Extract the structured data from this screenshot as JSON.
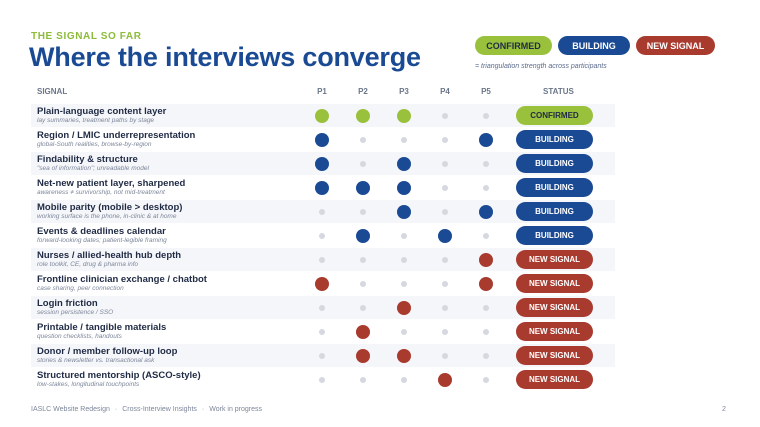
{
  "eyebrow": "THE SIGNAL SO FAR",
  "title": "Where the interviews converge",
  "legend": {
    "confirmed": "CONFIRMED",
    "building": "BUILDING",
    "new_signal": "NEW SIGNAL",
    "note": "= triangulation strength across participants"
  },
  "colors": {
    "confirmed": "#9ac13c",
    "building": "#1a4a94",
    "new_signal": "#a83a2e",
    "dot_empty": "#d5d8de"
  },
  "table": {
    "headers": {
      "signal": "SIGNAL",
      "p1": "P1",
      "p2": "P2",
      "p3": "P3",
      "p4": "P4",
      "p5": "P5",
      "status": "STATUS"
    },
    "rows": [
      {
        "title": "Plain-language content layer",
        "subtitle": "lay summaries, treatment paths by stage",
        "dots": [
          1,
          1,
          1,
          0,
          0
        ],
        "status": "CONFIRMED",
        "kind": "confirmed"
      },
      {
        "title": "Region / LMIC underrepresentation",
        "subtitle": "global-South realities, browse-by-region",
        "dots": [
          1,
          0,
          0,
          0,
          1
        ],
        "status": "BUILDING",
        "kind": "building"
      },
      {
        "title": "Findability & structure",
        "subtitle": "\"sea of information\"; unreadable model",
        "dots": [
          1,
          0,
          1,
          0,
          0
        ],
        "status": "BUILDING",
        "kind": "building"
      },
      {
        "title": "Net-new patient layer, sharpened",
        "subtitle": "awareness ≠ survivorship, not mid-treatment",
        "dots": [
          1,
          1,
          1,
          0,
          0
        ],
        "status": "BUILDING",
        "kind": "building"
      },
      {
        "title": "Mobile parity (mobile > desktop)",
        "subtitle": "working surface is the phone, in-clinic & at home",
        "dots": [
          0,
          0,
          1,
          0,
          1
        ],
        "status": "BUILDING",
        "kind": "building"
      },
      {
        "title": "Events & deadlines calendar",
        "subtitle": "forward-looking dates; patient-legible framing",
        "dots": [
          0,
          1,
          0,
          1,
          0
        ],
        "status": "BUILDING",
        "kind": "building"
      },
      {
        "title": "Nurses / allied-health hub depth",
        "subtitle": "role toolkit, CE, drug & pharma info",
        "dots": [
          0,
          0,
          0,
          0,
          1
        ],
        "status": "NEW SIGNAL",
        "kind": "new_signal"
      },
      {
        "title": "Frontline clinician exchange / chatbot",
        "subtitle": "case sharing, peer connection",
        "dots": [
          1,
          0,
          0,
          0,
          1
        ],
        "status": "NEW SIGNAL",
        "kind": "new_signal"
      },
      {
        "title": "Login friction",
        "subtitle": "session persistence / SSO",
        "dots": [
          0,
          0,
          1,
          0,
          0
        ],
        "status": "NEW SIGNAL",
        "kind": "new_signal"
      },
      {
        "title": "Printable / tangible materials",
        "subtitle": "question checklists, handouts",
        "dots": [
          0,
          1,
          0,
          0,
          0
        ],
        "status": "NEW SIGNAL",
        "kind": "new_signal"
      },
      {
        "title": "Donor / member follow-up loop",
        "subtitle": "stories & newsletter vs. transactional ask",
        "dots": [
          0,
          1,
          1,
          0,
          0
        ],
        "status": "NEW SIGNAL",
        "kind": "new_signal"
      },
      {
        "title": "Structured mentorship (ASCO-style)",
        "subtitle": "low-stakes, longitudinal touchpoints",
        "dots": [
          0,
          0,
          0,
          1,
          0
        ],
        "status": "NEW SIGNAL",
        "kind": "new_signal"
      }
    ]
  },
  "footer": {
    "project": "IASLC Website Redesign",
    "section": "Cross-Interview Insights",
    "state": "Work in progress",
    "separator": "·",
    "page": "2"
  }
}
